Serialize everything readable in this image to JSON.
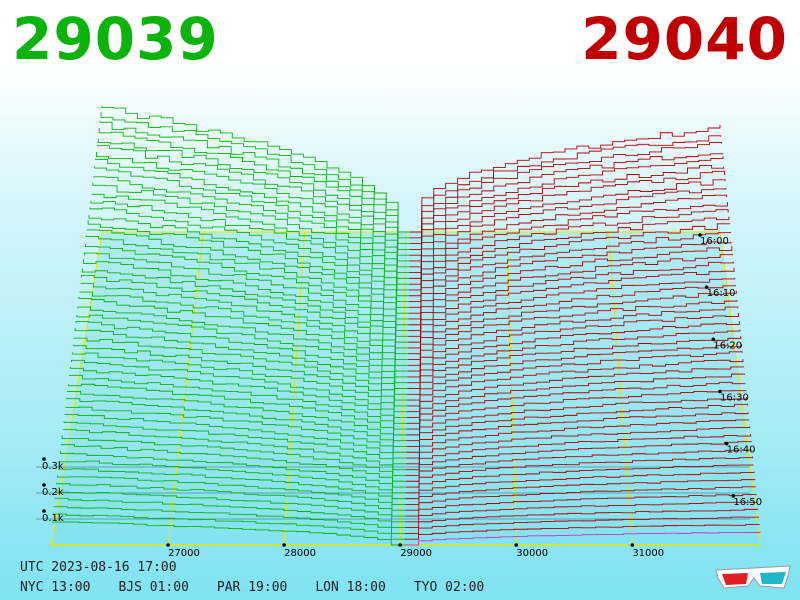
{
  "header": {
    "bid_price": "29039",
    "ask_price": "29040",
    "bid_color": "#0cb30c",
    "ask_color": "#c00000"
  },
  "footer": {
    "utc_label": "UTC 2023-08-16 17:00",
    "zones": [
      {
        "label": "NYC 13:00"
      },
      {
        "label": "BJS 01:00"
      },
      {
        "label": "PAR 19:00"
      },
      {
        "label": "LON 18:00"
      },
      {
        "label": "TYO 02:00"
      }
    ]
  },
  "icons": {
    "glasses": "3d-glasses-icon"
  },
  "chart_data": {
    "type": "line",
    "subtype": "3d-depth-waterfall",
    "x_axis": {
      "ticks": [
        "27000",
        "28000",
        "29000",
        "30000",
        "31000"
      ],
      "range": [
        26000,
        32100
      ]
    },
    "z_axis": {
      "ticks": [
        "0.1k",
        "0.2k",
        "0.3k"
      ]
    },
    "time_axis": {
      "ticks": [
        "16:00",
        "16:10",
        "16:20",
        "16:30",
        "16:40",
        "16:50"
      ]
    },
    "mid_price": 29039.5,
    "bid_color": "#0cb30c",
    "ask_color": "#b00000",
    "latest_color": "#cc33cc",
    "grid_color": "#e6e600",
    "snapshot_count": 55,
    "bid_depth_start": 0.48,
    "bid_depth_end": 0.09,
    "ask_depth_start": 0.4,
    "ask_depth_end": 0.05
  }
}
